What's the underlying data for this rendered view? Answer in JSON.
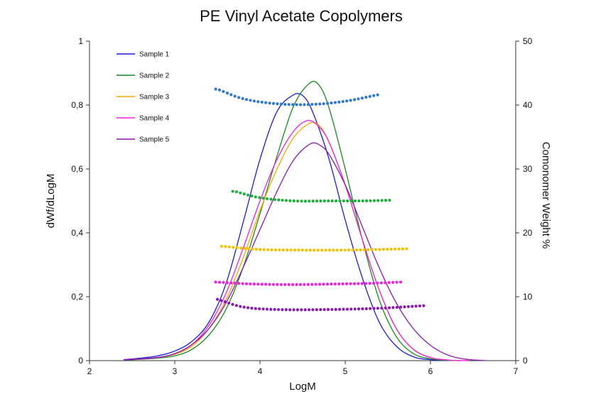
{
  "chart_data": {
    "type": "line",
    "title": "PE Vinyl Acetate Copolymers",
    "xlabel": "LogM",
    "ylabel": "dWf/dLogM",
    "y2label": "Comonomer Weight %",
    "xlim": [
      2,
      7
    ],
    "ylim": [
      0,
      1
    ],
    "y2lim": [
      0,
      50
    ],
    "x_ticks": [
      "2",
      "3",
      "4",
      "5",
      "6",
      "7"
    ],
    "y_ticks": [
      "0",
      "0,2",
      "0,4",
      "0,6",
      "0,8",
      "1"
    ],
    "y2_ticks": [
      "0",
      "10",
      "20",
      "30",
      "40",
      "50"
    ],
    "grid": false,
    "legend_position": "top-left",
    "series": [
      {
        "name": "Sample 1",
        "color": "#1a1adb",
        "axis": "left",
        "peak_x": 4.45,
        "peak_y": 0.835,
        "x_range": [
          2.38,
          6.3
        ],
        "points": [
          [
            2.4,
            0.003
          ],
          [
            2.6,
            0.008
          ],
          [
            2.8,
            0.015
          ],
          [
            3.0,
            0.03
          ],
          [
            3.2,
            0.06
          ],
          [
            3.4,
            0.12
          ],
          [
            3.6,
            0.24
          ],
          [
            3.8,
            0.43
          ],
          [
            4.0,
            0.63
          ],
          [
            4.2,
            0.78
          ],
          [
            4.4,
            0.833
          ],
          [
            4.5,
            0.83
          ],
          [
            4.6,
            0.79
          ],
          [
            4.8,
            0.64
          ],
          [
            5.0,
            0.44
          ],
          [
            5.2,
            0.26
          ],
          [
            5.4,
            0.12
          ],
          [
            5.6,
            0.045
          ],
          [
            5.8,
            0.012
          ],
          [
            6.0,
            0.003
          ],
          [
            6.2,
            0.0
          ]
        ],
        "comonomer": {
          "x_range": [
            3.48,
            5.38
          ],
          "values": [
            [
              3.5,
              42.5
            ],
            [
              3.8,
              41.0
            ],
            [
              4.2,
              40.2
            ],
            [
              4.6,
              40.1
            ],
            [
              5.0,
              40.6
            ],
            [
              5.38,
              41.6
            ]
          ]
        }
      },
      {
        "name": "Sample 2",
        "color": "#1a8a1a",
        "axis": "left",
        "peak_x": 4.62,
        "peak_y": 0.872,
        "x_range": [
          2.45,
          6.35
        ],
        "points": [
          [
            2.45,
            0.002
          ],
          [
            2.8,
            0.008
          ],
          [
            3.0,
            0.015
          ],
          [
            3.2,
            0.035
          ],
          [
            3.4,
            0.08
          ],
          [
            3.6,
            0.16
          ],
          [
            3.8,
            0.29
          ],
          [
            4.0,
            0.46
          ],
          [
            4.2,
            0.64
          ],
          [
            4.4,
            0.8
          ],
          [
            4.6,
            0.872
          ],
          [
            4.7,
            0.86
          ],
          [
            4.8,
            0.8
          ],
          [
            5.0,
            0.6
          ],
          [
            5.2,
            0.38
          ],
          [
            5.4,
            0.19
          ],
          [
            5.6,
            0.075
          ],
          [
            5.8,
            0.022
          ],
          [
            6.0,
            0.006
          ],
          [
            6.2,
            0.001
          ],
          [
            6.35,
            0.0
          ]
        ],
        "comonomer": {
          "x_range": [
            3.68,
            5.52
          ],
          "values": [
            [
              3.7,
              26.5
            ],
            [
              4.0,
              25.5
            ],
            [
              4.4,
              25.0
            ],
            [
              4.8,
              25.0
            ],
            [
              5.2,
              25.0
            ],
            [
              5.52,
              25.1
            ]
          ]
        }
      },
      {
        "name": "Sample 3",
        "color": "#f5a800",
        "axis": "left",
        "peak_x": 4.63,
        "peak_y": 0.745,
        "x_range": [
          2.38,
          6.45
        ],
        "points": [
          [
            2.4,
            0.002
          ],
          [
            2.8,
            0.01
          ],
          [
            3.0,
            0.02
          ],
          [
            3.2,
            0.045
          ],
          [
            3.4,
            0.1
          ],
          [
            3.6,
            0.19
          ],
          [
            3.8,
            0.32
          ],
          [
            4.0,
            0.47
          ],
          [
            4.2,
            0.6
          ],
          [
            4.4,
            0.7
          ],
          [
            4.6,
            0.745
          ],
          [
            4.7,
            0.735
          ],
          [
            4.8,
            0.69
          ],
          [
            5.0,
            0.55
          ],
          [
            5.2,
            0.38
          ],
          [
            5.4,
            0.22
          ],
          [
            5.6,
            0.1
          ],
          [
            5.8,
            0.036
          ],
          [
            6.0,
            0.01
          ],
          [
            6.2,
            0.002
          ],
          [
            6.45,
            0.0
          ]
        ],
        "comonomer": {
          "x_range": [
            3.55,
            5.72
          ],
          "values": [
            [
              3.55,
              17.9
            ],
            [
              4.0,
              17.4
            ],
            [
              4.5,
              17.3
            ],
            [
              5.0,
              17.3
            ],
            [
              5.4,
              17.4
            ],
            [
              5.72,
              17.5
            ]
          ]
        }
      },
      {
        "name": "Sample 4",
        "color": "#f020e0",
        "axis": "left",
        "peak_x": 4.57,
        "peak_y": 0.752,
        "x_range": [
          2.38,
          6.45
        ],
        "points": [
          [
            2.4,
            0.002
          ],
          [
            2.8,
            0.01
          ],
          [
            3.0,
            0.022
          ],
          [
            3.2,
            0.05
          ],
          [
            3.4,
            0.11
          ],
          [
            3.6,
            0.21
          ],
          [
            3.8,
            0.35
          ],
          [
            4.0,
            0.5
          ],
          [
            4.2,
            0.63
          ],
          [
            4.4,
            0.72
          ],
          [
            4.57,
            0.752
          ],
          [
            4.7,
            0.73
          ],
          [
            4.8,
            0.69
          ],
          [
            5.0,
            0.55
          ],
          [
            5.2,
            0.38
          ],
          [
            5.4,
            0.22
          ],
          [
            5.6,
            0.1
          ],
          [
            5.8,
            0.035
          ],
          [
            6.0,
            0.01
          ],
          [
            6.2,
            0.002
          ],
          [
            6.45,
            0.0
          ]
        ],
        "comonomer": {
          "x_range": [
            3.48,
            5.65
          ],
          "values": [
            [
              3.48,
              12.3
            ],
            [
              3.9,
              12.0
            ],
            [
              4.4,
              11.9
            ],
            [
              4.9,
              12.0
            ],
            [
              5.3,
              12.1
            ],
            [
              5.65,
              12.3
            ]
          ]
        }
      },
      {
        "name": "Sample 5",
        "color": "#8a1ab0",
        "axis": "left",
        "peak_x": 4.6,
        "peak_y": 0.68,
        "x_range": [
          2.38,
          6.65
        ],
        "points": [
          [
            2.4,
            0.002
          ],
          [
            2.8,
            0.01
          ],
          [
            3.0,
            0.022
          ],
          [
            3.2,
            0.05
          ],
          [
            3.4,
            0.1
          ],
          [
            3.6,
            0.18
          ],
          [
            3.8,
            0.29
          ],
          [
            4.0,
            0.41
          ],
          [
            4.2,
            0.53
          ],
          [
            4.4,
            0.63
          ],
          [
            4.6,
            0.68
          ],
          [
            4.7,
            0.675
          ],
          [
            4.8,
            0.65
          ],
          [
            5.0,
            0.55
          ],
          [
            5.2,
            0.42
          ],
          [
            5.4,
            0.29
          ],
          [
            5.6,
            0.18
          ],
          [
            5.8,
            0.1
          ],
          [
            6.0,
            0.048
          ],
          [
            6.2,
            0.018
          ],
          [
            6.4,
            0.005
          ],
          [
            6.65,
            0.0
          ]
        ],
        "comonomer": {
          "x_range": [
            3.5,
            5.92
          ],
          "values": [
            [
              3.5,
              9.6
            ],
            [
              3.8,
              8.4
            ],
            [
              4.2,
              8.0
            ],
            [
              4.8,
              8.0
            ],
            [
              5.4,
              8.2
            ],
            [
              5.92,
              8.6
            ]
          ]
        }
      }
    ]
  }
}
